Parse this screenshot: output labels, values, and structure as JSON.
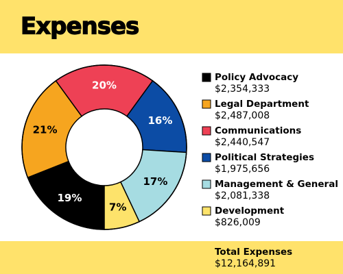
{
  "chart_data": {
    "type": "donut",
    "title": "Expenses",
    "categories": [
      "Policy Advocacy",
      "Legal Department",
      "Communications",
      "Political Strategies",
      "Management & General",
      "Development"
    ],
    "values": [
      19,
      21,
      20,
      16,
      17,
      7
    ],
    "value_labels": [
      "19%",
      "21%",
      "20%",
      "16%",
      "17%",
      "7%"
    ],
    "amount_labels": [
      "$2,354,333",
      "$2,487,008",
      "$2,440,547",
      "$1,975,656",
      "$2,081,338",
      "$826,009"
    ],
    "colors": [
      "#000000",
      "#f6a51f",
      "#ee4155",
      "#0c4ca5",
      "#a6dce2",
      "#fde36b"
    ],
    "total_label": "Total Expenses",
    "total_amount": "$12,164,891",
    "legend": "right"
  }
}
